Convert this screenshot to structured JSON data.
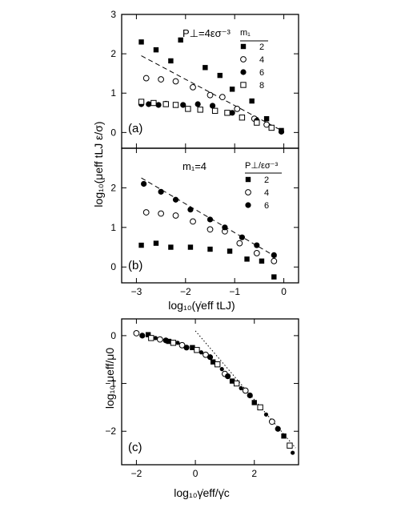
{
  "chart_data": [
    {
      "type": "scatter",
      "panel_label": "(a)",
      "annotation": "P⊥=4εσ⁻³",
      "xlabel": "",
      "ylabel": "log₁₀(μeff tLJ ε/σ)",
      "xlim": [
        -3.3,
        0.3
      ],
      "ylim": [
        -0.4,
        3.0
      ],
      "x_ticks": [
        -3,
        -2,
        -1,
        0
      ],
      "y_ticks": [
        0,
        1,
        2,
        3
      ],
      "x_tick_labels": [
        "",
        "",
        "",
        ""
      ],
      "y_tick_labels": [
        "0",
        "1",
        "2",
        "3"
      ],
      "legend": {
        "title": "m₁",
        "position": "top-right"
      },
      "series": [
        {
          "name": "2",
          "marker": "filled-square",
          "x": [
            -2.9,
            -2.6,
            -2.3,
            -2.1,
            -1.6,
            -1.3,
            -1.05,
            -0.65,
            -0.35,
            -0.05
          ],
          "y": [
            2.3,
            2.1,
            1.82,
            2.35,
            1.65,
            1.45,
            1.1,
            0.8,
            0.35,
            0.05
          ]
        },
        {
          "name": "4",
          "marker": "open-circle",
          "x": [
            -2.8,
            -2.5,
            -2.2,
            -1.85,
            -1.5,
            -1.25,
            -0.95,
            -0.6,
            -0.35
          ],
          "y": [
            1.38,
            1.35,
            1.3,
            1.15,
            0.95,
            0.9,
            0.6,
            0.35,
            0.2
          ]
        },
        {
          "name": "6",
          "marker": "filled-circle",
          "x": [
            -2.9,
            -2.75,
            -2.55,
            -2.4,
            -2.05,
            -1.75,
            -1.45,
            -1.05,
            -0.55,
            -0.05
          ],
          "y": [
            0.72,
            0.72,
            0.7,
            0.73,
            0.7,
            0.72,
            0.68,
            0.5,
            0.3,
            0.02
          ]
        },
        {
          "name": "8",
          "marker": "open-square",
          "x": [
            -2.9,
            -2.65,
            -2.4,
            -2.2,
            -1.95,
            -1.7,
            -1.4,
            -1.15,
            -0.85,
            -0.55,
            -0.25
          ],
          "y": [
            0.78,
            0.75,
            0.72,
            0.7,
            0.6,
            0.58,
            0.55,
            0.5,
            0.38,
            0.25,
            0.12
          ]
        }
      ],
      "fit_line": {
        "style": "dashed",
        "x": [
          -2.9,
          0
        ],
        "y": [
          1.95,
          0.02
        ]
      }
    },
    {
      "type": "scatter",
      "panel_label": "(b)",
      "annotation": "m₁=4",
      "xlabel": "log₁₀(γ̇eff tLJ)",
      "ylabel": "",
      "xlim": [
        -3.3,
        0.3
      ],
      "ylim": [
        -0.4,
        3.0
      ],
      "x_ticks": [
        -3,
        -2,
        -1,
        0
      ],
      "y_ticks": [
        0,
        1,
        2
      ],
      "x_tick_labels": [
        "−3",
        "−2",
        "−1",
        "0"
      ],
      "y_tick_labels": [
        "0",
        "1",
        "2"
      ],
      "legend": {
        "title": "P⊥/εσ⁻³",
        "position": "top-right"
      },
      "series": [
        {
          "name": "2",
          "marker": "filled-square",
          "x": [
            -2.9,
            -2.6,
            -2.3,
            -1.9,
            -1.5,
            -1.1,
            -0.75,
            -0.45,
            -0.2
          ],
          "y": [
            0.55,
            0.6,
            0.5,
            0.5,
            0.45,
            0.4,
            0.2,
            0.15,
            -0.25
          ]
        },
        {
          "name": "4",
          "marker": "open-circle",
          "x": [
            -2.8,
            -2.5,
            -2.2,
            -1.85,
            -1.5,
            -1.2,
            -0.9,
            -0.55,
            -0.2
          ],
          "y": [
            1.38,
            1.35,
            1.3,
            1.15,
            0.95,
            0.9,
            0.6,
            0.35,
            0.15
          ]
        },
        {
          "name": "6",
          "marker": "filled-circle",
          "x": [
            -2.85,
            -2.5,
            -2.2,
            -1.9,
            -1.5,
            -1.2,
            -0.85,
            -0.55,
            -0.2
          ],
          "y": [
            2.1,
            1.9,
            1.7,
            1.45,
            1.2,
            1.0,
            0.75,
            0.55,
            0.3
          ]
        }
      ],
      "fit_line": {
        "style": "dashed",
        "x": [
          -2.9,
          -0.15
        ],
        "y": [
          2.25,
          0.25
        ]
      }
    },
    {
      "type": "scatter",
      "panel_label": "(c)",
      "annotation": "",
      "xlabel": "log₁₀γ̇eff/γ̇c",
      "ylabel": "log₁₀ μeff/μ0",
      "xlim": [
        -2.5,
        3.5
      ],
      "ylim": [
        -2.7,
        0.35
      ],
      "x_ticks": [
        -2,
        0,
        2
      ],
      "y_ticks": [
        -2,
        -1,
        0
      ],
      "x_tick_labels": [
        "−2",
        "0",
        "2"
      ],
      "y_tick_labels": [
        "−2",
        "−1",
        "0"
      ],
      "series": [
        {
          "name": "",
          "marker": "mixed",
          "x": [
            -2.0,
            -1.8,
            -1.6,
            -1.5,
            -1.35,
            -1.2,
            -1.0,
            -0.9,
            -0.75,
            -0.6,
            -0.45,
            -0.3,
            -0.1,
            0.05,
            0.2,
            0.35,
            0.5,
            0.6,
            0.75,
            0.9,
            1.0,
            1.1,
            1.25,
            1.4,
            1.55,
            1.7,
            1.85,
            2.0,
            2.2,
            2.4,
            2.6,
            2.8,
            3.0,
            3.2,
            3.3
          ],
          "y": [
            0.05,
            0.0,
            0.02,
            -0.05,
            -0.05,
            -0.08,
            -0.1,
            -0.12,
            -0.15,
            -0.15,
            -0.2,
            -0.25,
            -0.25,
            -0.3,
            -0.35,
            -0.4,
            -0.45,
            -0.55,
            -0.6,
            -0.7,
            -0.8,
            -0.85,
            -0.95,
            -1.0,
            -1.1,
            -1.15,
            -1.25,
            -1.4,
            -1.5,
            -1.65,
            -1.8,
            -1.95,
            -2.1,
            -2.3,
            -2.45
          ]
        }
      ],
      "reference_line": {
        "style": "dotted",
        "x": [
          0,
          3.4
        ],
        "y": [
          0.1,
          -2.35
        ]
      }
    }
  ]
}
